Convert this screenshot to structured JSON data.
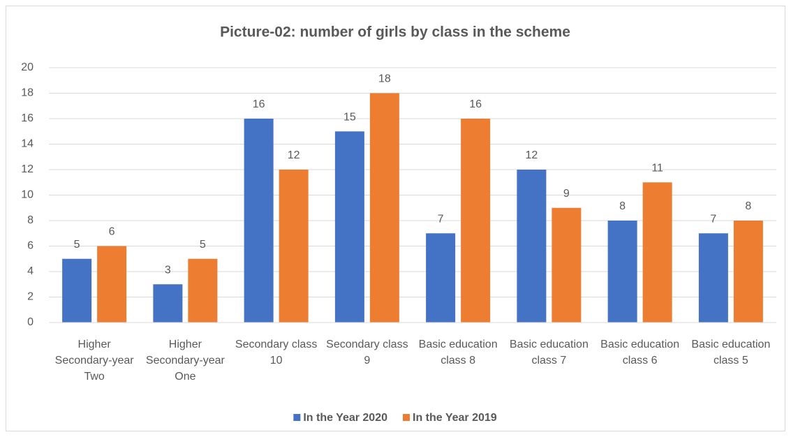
{
  "chart_data": {
    "type": "bar",
    "title": "Picture-02: number of girls by class in the scheme",
    "categories": [
      "Higher Secondary-year Two",
      "Higher Secondary-year One",
      "Secondary class 10",
      "Secondary class 9",
      "Basic education class 8",
      "Basic education class 7",
      "Basic education class 6",
      "Basic education class 5"
    ],
    "series": [
      {
        "name": "In the Year 2020",
        "color": "#4472c4",
        "values": [
          5,
          3,
          16,
          15,
          7,
          12,
          8,
          7
        ]
      },
      {
        "name": "In the Year 2019",
        "color": "#ed7d31",
        "values": [
          6,
          5,
          12,
          18,
          16,
          9,
          11,
          8
        ]
      }
    ],
    "ylim": [
      0,
      20
    ],
    "yticks": [
      0,
      2,
      4,
      6,
      8,
      10,
      12,
      14,
      16,
      18,
      20
    ],
    "grid": true,
    "legend": "bottom"
  }
}
